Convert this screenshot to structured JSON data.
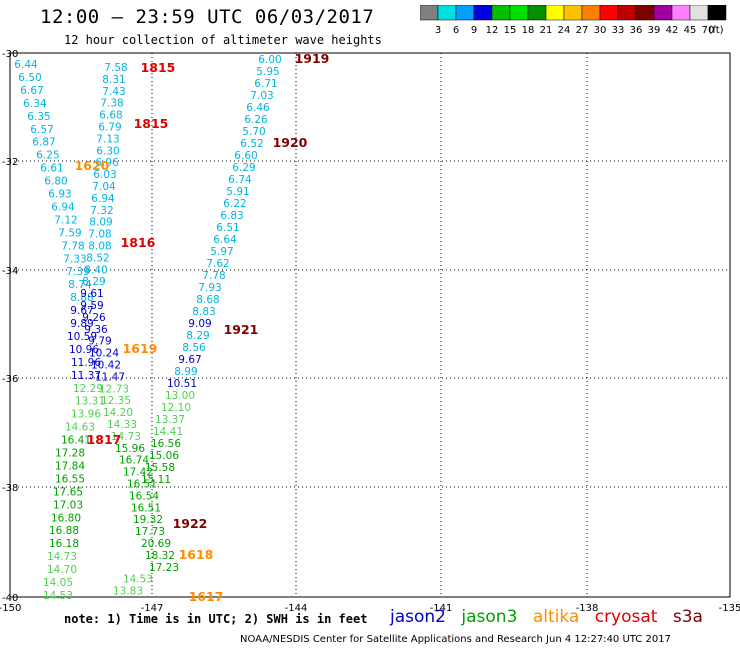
{
  "title": "12:00 – 23:59 UTC 06/03/2017",
  "subtitle": "12 hour collection of altimeter wave heights",
  "scale": {
    "labels": [
      "3",
      "6",
      "9",
      "12",
      "15",
      "18",
      "21",
      "24",
      "27",
      "30",
      "33",
      "36",
      "39",
      "42",
      "45",
      "70"
    ],
    "unit": "(ft)",
    "colors": [
      "#808080",
      "#00e0e0",
      "#00a0ff",
      "#0000e0",
      "#00c000",
      "#00e000",
      "#009000",
      "#ffff00",
      "#ffc000",
      "#ff8000",
      "#ff0000",
      "#c00000",
      "#800000",
      "#a000a0",
      "#ff80ff",
      "#e0e0e0",
      "#000000"
    ]
  },
  "map": {
    "lon_labels": [
      "-150",
      "-147",
      "-144",
      "-141",
      "-138",
      "-135"
    ],
    "lat_labels": [
      "-30",
      "-32",
      "-34",
      "-36",
      "-38",
      "-40"
    ]
  },
  "colors": {
    "jason2": "#0000cc",
    "jason3": "#00a000",
    "altika": "#ff8c00",
    "cryosat": "#e00000",
    "s3a": "#800000",
    "cyan": "#00b4e0",
    "lightgreen": "#50d050"
  },
  "tracks": [
    {
      "values": [
        "6.44",
        "6.50",
        "6.67",
        "6.34",
        "6.35",
        "6.57",
        "6.87",
        "6.25",
        "6.61",
        "6.80",
        "6.93",
        "6.94",
        "7.12",
        "7.59",
        "7.78",
        "7.33",
        "7.39",
        "8.74",
        "8.88",
        "9.67",
        "9.89",
        "10.59",
        "10.96",
        "11.96",
        "11.37",
        "12.29",
        "13.31",
        "13.96",
        "14.63",
        "16.41",
        "17.28",
        "17.84",
        "16.55",
        "17.65",
        "17.03",
        "16.80",
        "16.88",
        "16.18",
        "14.73",
        "14.70",
        "14.05",
        "14.53"
      ]
    },
    {
      "values": [
        "7.58",
        "8.31",
        "7.43",
        "7.38",
        "6.68",
        "6.79",
        "7.13",
        "6.30",
        "6.96",
        "6.03",
        "7.04",
        "6.94",
        "7.32",
        "8.09",
        "7.08",
        "8.08",
        "8.52",
        "8.40",
        "8.29",
        "9.61",
        "9.59",
        "9.26",
        "9.36",
        "9.79",
        "10.24",
        "10.42",
        "11.47",
        "12.73",
        "12.35",
        "14.20",
        "14.33",
        "14.73",
        "15.96",
        "16.74",
        "17.42",
        "16.51",
        "16.54",
        "16.51",
        "19.32",
        "17.73",
        "20.69",
        "18.32",
        "17.23",
        "14.53",
        "13.83"
      ]
    },
    {
      "values": [
        "6.00",
        "5.95",
        "6.71",
        "7.03",
        "6.46",
        "6.26",
        "5.70",
        "6.52",
        "6.60",
        "6.29",
        "6.74",
        "5.91",
        "6.22",
        "6.83",
        "6.51",
        "6.64",
        "5.97",
        "7.62",
        "7.78",
        "7.93",
        "8.68",
        "8.83",
        "9.09",
        "8.29",
        "8.56",
        "9.67",
        "8.99",
        "10.51",
        "13.00",
        "12.10",
        "13.37",
        "14.41",
        "16.56",
        "15.06",
        "15.58",
        "15.11"
      ]
    }
  ],
  "passes": [
    "1815",
    "1815",
    "1620",
    "1816",
    "1619",
    "1817",
    "1919",
    "1920",
    "1921",
    "1922",
    "1618",
    "1617"
  ],
  "note": "note: 1) Time is in UTC; 2) SWH is in feet",
  "legend": [
    "jason2",
    "jason3",
    "altika",
    "cryosat",
    "s3a"
  ],
  "footer": "NOAA/NESDIS Center for Satellite Applications and Research   Jun  4 12:27:40 UTC 2017"
}
